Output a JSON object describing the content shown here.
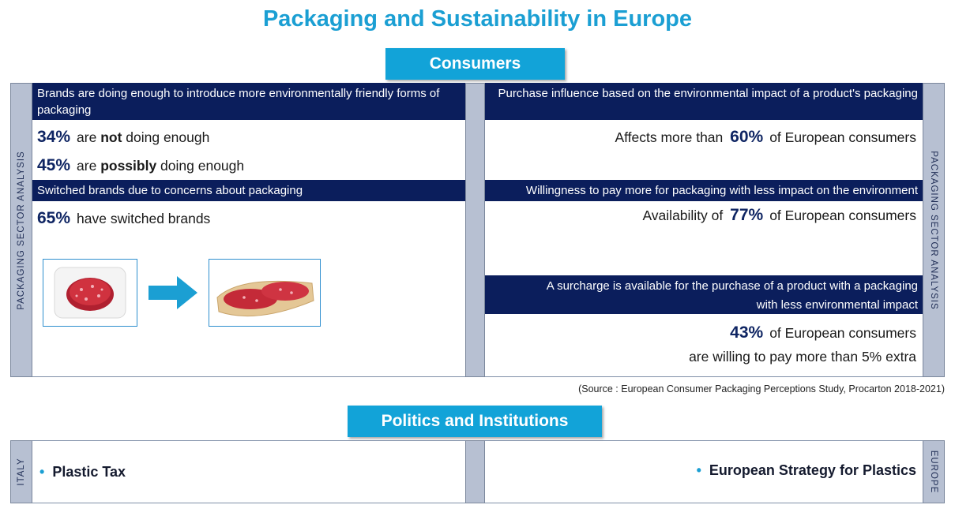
{
  "title": "Packaging and Sustainability in Europe",
  "consumers_tab": "Consumers",
  "left_sidebar_label": "PACKAGING SECTOR ANALYSIS",
  "right_sidebar_label": "PACKAGING SECTOR ANALYSIS",
  "left": {
    "band1": "Brands are doing enough to introduce more environmentally friendly forms of packaging",
    "stat1": {
      "pct": "34%",
      "pre": "are ",
      "bold": "not",
      "post": " doing enough"
    },
    "stat2": {
      "pct": "45%",
      "pre": "are ",
      "bold": "possibly",
      "post": " doing enough"
    },
    "band2": "Switched brands due to concerns about packaging",
    "stat3": {
      "pct": "65%",
      "text": "have switched brands"
    }
  },
  "right": {
    "band1": "Purchase influence based on the environmental impact of a product's packaging",
    "stat1": {
      "pre": "Affects more than",
      "pct": "60%",
      "post": "of European consumers"
    },
    "band2": "Willingness to pay more for packaging with less impact on the environment",
    "stat2": {
      "pre": "Availability of",
      "pct": "77%",
      "post": "of European consumers"
    },
    "band3_line1": "A surcharge is available for the purchase of a product with a packaging",
    "band3_line2": "with less environmental impact",
    "stat3": {
      "pct": "43%",
      "post": "of European consumers",
      "line2": "are willing to pay more than 5% extra"
    }
  },
  "source": "(Source : European Consumer Packaging Perceptions Study, Procarton 2018-2021)",
  "politics_tab": "Politics and Institutions",
  "politics": {
    "left_label": "ITALY",
    "right_label": "EUROPE",
    "left_item": "Plastic Tax",
    "right_item": "European Strategy for Plastics"
  },
  "colors": {
    "accent": "#1b9fd3",
    "navy": "#0b1e5c",
    "sidebar": "#b7c0d2",
    "tab": "#12a3d8"
  },
  "icons": {
    "arrow": "arrow-right-icon"
  }
}
